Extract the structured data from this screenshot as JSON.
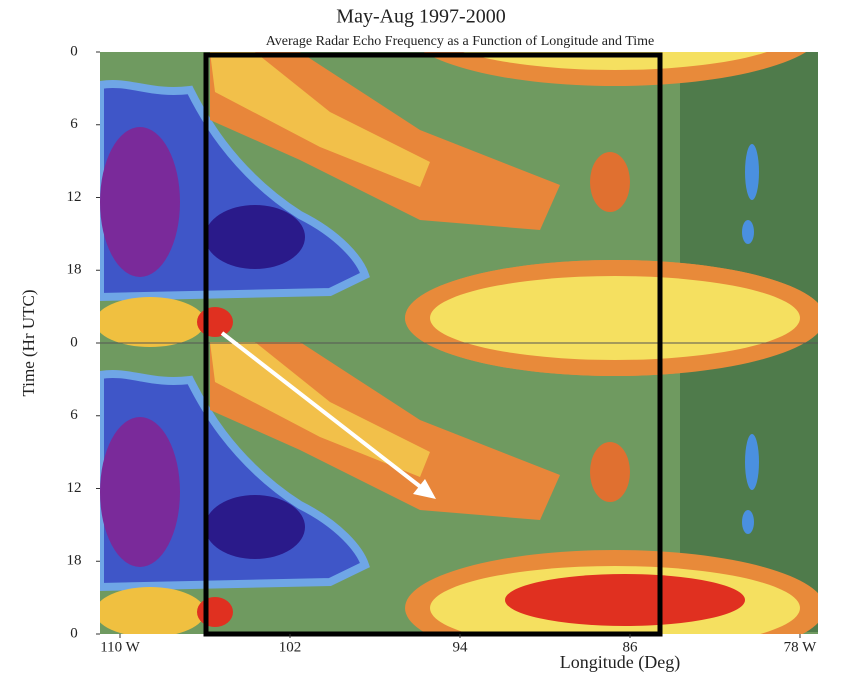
{
  "chart_data": {
    "type": "contour",
    "title": "May-Aug 1997-2000",
    "subtitle": "Average Radar Echo Frequency as a Function of Longitude and Time",
    "xlabel": "Longitude (Deg)",
    "ylabel": "Time (Hr UTC)",
    "xlim": [
      110,
      78
    ],
    "ylim": [
      0,
      48
    ],
    "xticks": [
      {
        "value": 110,
        "label": "110 W"
      },
      102,
      94,
      86,
      {
        "value": 78,
        "label": "78 W"
      }
    ],
    "yticks": [
      0,
      6,
      12,
      18,
      {
        "value": 24,
        "label": "0"
      },
      {
        "value": 30,
        "label": "6"
      },
      {
        "value": 36,
        "label": "12"
      },
      {
        "value": 42,
        "label": "18"
      },
      {
        "value": 48,
        "label": "0"
      }
    ]
  }
}
